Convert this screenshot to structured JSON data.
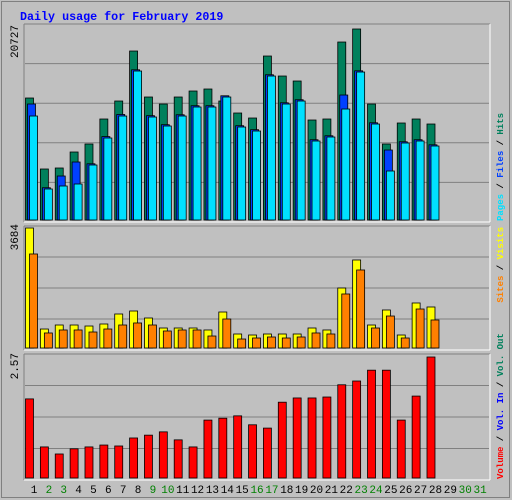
{
  "chart_data": [
    {
      "type": "bar",
      "title": "Daily usage for February 2019",
      "categories": [
        "1",
        "2",
        "3",
        "4",
        "5",
        "6",
        "7",
        "8",
        "9",
        "10",
        "11",
        "12",
        "13",
        "14",
        "15",
        "16",
        "17",
        "18",
        "19",
        "20",
        "21",
        "22",
        "23",
        "24",
        "25",
        "26",
        "27",
        "28",
        "29",
        "30",
        "31"
      ],
      "category_colors": [
        "#000000",
        "#008000",
        "#008000",
        "#000000",
        "#000000",
        "#000000",
        "#000000",
        "#000000",
        "#008000",
        "#008000",
        "#000000",
        "#000000",
        "#000000",
        "#000000",
        "#000000",
        "#008000",
        "#008000",
        "#000000",
        "#000000",
        "#000000",
        "#000000",
        "#000000",
        "#008000",
        "#008000",
        "#000000",
        "#000000",
        "#000000",
        "#000000",
        "#000000",
        "#008000",
        "#008000"
      ],
      "legend_separator": " / ",
      "ylim": [
        0,
        20727
      ],
      "yticks": [
        20727
      ],
      "series": [
        {
          "name": "Hits",
          "color": "#00805c",
          "values": [
            13237,
            5534,
            5642,
            7378,
            8246,
            10959,
            12912,
            18337,
            13346,
            12586,
            13346,
            13997,
            14214,
            12912,
            11610,
            11067,
            17794,
            15624,
            15082,
            10850,
            10959,
            19313,
            20727,
            12586,
            8246,
            10525,
            10959,
            10416,
            null,
            null,
            null
          ]
        },
        {
          "name": "Files",
          "color": "#0040ff",
          "values": [
            12587,
            3500,
            4774,
            6293,
            6100,
            9050,
            11450,
            16300,
            11320,
            10340,
            11420,
            12400,
            12400,
            13480,
            10230,
            9800,
            15760,
            12720,
            13050,
            8710,
            9140,
            13563,
            16190,
            10550,
            7595,
            8490,
            8710,
            8160,
            null,
            null,
            null
          ]
        },
        {
          "name": "Pages",
          "color": "#00e0ff",
          "values": [
            11284,
            3364,
            3689,
            3906,
            5968,
            8897,
            11284,
            16167,
            11176,
            10199,
            11284,
            12261,
            12261,
            13346,
            10091,
            9657,
            15624,
            12586,
            12912,
            8572,
            9006,
            12044,
            16058,
            10416,
            5317,
            8355,
            8572,
            8029,
            null,
            null,
            null
          ]
        }
      ]
    },
    {
      "type": "bar",
      "ylim": [
        0,
        3684
      ],
      "yticks": [
        3684
      ],
      "series": [
        {
          "name": "Visits",
          "color": "#ffff00",
          "values": [
            3684,
            583,
            706,
            706,
            675,
            737,
            1044,
            1136,
            921,
            614,
            614,
            614,
            553,
            1105,
            430,
            399,
            430,
            430,
            430,
            614,
            553,
            1842,
            2702,
            706,
            1167,
            399,
            1382,
            1259,
            null,
            null,
            null
          ]
        },
        {
          "name": "Sites",
          "color": "#ff8000",
          "values": [
            2886,
            461,
            553,
            553,
            491,
            583,
            706,
            768,
            706,
            522,
            553,
            553,
            368,
            890,
            276,
            307,
            338,
            307,
            338,
            461,
            430,
            1658,
            2395,
            614,
            982,
            307,
            1197,
            860,
            null,
            null,
            null
          ]
        }
      ]
    },
    {
      "type": "bar",
      "ylim": [
        0,
        2.57
      ],
      "yticks": [
        2.57
      ],
      "series": [
        {
          "name": "Volume",
          "color": "#ff0000",
          "values": [
            1.68,
            0.66,
            0.51,
            0.62,
            0.66,
            0.7,
            0.68,
            0.85,
            0.91,
            0.98,
            0.81,
            0.66,
            1.23,
            1.27,
            1.32,
            1.13,
            1.06,
            1.61,
            1.7,
            1.7,
            1.72,
            1.98,
            2.06,
            2.29,
            2.29,
            1.23,
            1.74,
            2.57,
            null,
            null,
            null
          ]
        }
      ],
      "extra_legend": [
        {
          "name": "Vol. In",
          "color": "#0000ff"
        },
        {
          "name": "Vol. Out",
          "color": "#00805c"
        }
      ]
    }
  ]
}
